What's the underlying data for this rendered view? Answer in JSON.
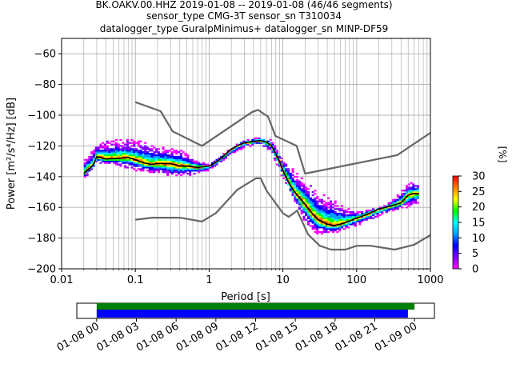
{
  "title_lines": [
    "BK.OAKV.00.HHZ   2019-01-08 -- 2019-01-08  (46/46 segments)",
    "sensor_type CMG-3T sensor_sn T310034",
    "datalogger_type GuralpMinimus+ datalogger_sn MINP-DF59"
  ],
  "chart_data": {
    "type": "heatmap",
    "xlabel": "Period [s]",
    "ylabel": "Power [m²/s⁴/Hz] [dB]",
    "xscale": "log",
    "xlim": [
      0.01,
      1000
    ],
    "ylim": [
      -200,
      -50
    ],
    "x_ticks": [
      0.01,
      0.1,
      1,
      10,
      100,
      1000
    ],
    "x_tick_labels": [
      "0.01",
      "0.1",
      "1",
      "10",
      "100",
      "1000"
    ],
    "y_ticks": [
      -200,
      -180,
      -160,
      -140,
      -120,
      -100,
      -80,
      -60
    ],
    "y_tick_labels": [
      "−200",
      "−180",
      "−160",
      "−140",
      "−120",
      "−100",
      "−80",
      "−60"
    ],
    "grid": true,
    "colorbar": {
      "label": "[%]",
      "ticks": [
        0,
        5,
        10,
        15,
        20,
        25,
        30
      ],
      "range": [
        0,
        30
      ],
      "colormap": "pqlx",
      "colors": [
        "#ff00ff",
        "#8000ff",
        "#0000ff",
        "#00a0ff",
        "#00ffff",
        "#00ff00",
        "#ffff00",
        "#ff8000",
        "#ff0000"
      ]
    },
    "noise_model_high": {
      "name": "NHNM",
      "color": "#666666",
      "points": [
        [
          0.1,
          -91.5
        ],
        [
          0.22,
          -97.4
        ],
        [
          0.32,
          -110.5
        ],
        [
          0.8,
          -120
        ],
        [
          3.8,
          -98
        ],
        [
          4.6,
          -96.5
        ],
        [
          6.3,
          -101
        ],
        [
          7.9,
          -113.5
        ],
        [
          15.4,
          -120
        ],
        [
          20,
          -138
        ],
        [
          354.8,
          -126
        ],
        [
          1000,
          -111.5
        ]
      ]
    },
    "noise_model_low": {
      "name": "NLNM",
      "color": "#666666",
      "points": [
        [
          0.1,
          -168
        ],
        [
          0.17,
          -166.7
        ],
        [
          0.4,
          -166.7
        ],
        [
          0.8,
          -169.2
        ],
        [
          1.24,
          -163.7
        ],
        [
          2.4,
          -148.6
        ],
        [
          4.3,
          -141.1
        ],
        [
          5,
          -141.1
        ],
        [
          6,
          -149
        ],
        [
          10,
          -163.8
        ],
        [
          12,
          -166.2
        ],
        [
          15.6,
          -162.1
        ],
        [
          21.9,
          -177.5
        ],
        [
          31.6,
          -185
        ],
        [
          45,
          -187.5
        ],
        [
          70,
          -187.5
        ],
        [
          101,
          -185
        ],
        [
          154,
          -185
        ],
        [
          328,
          -187.5
        ],
        [
          600,
          -184.4
        ],
        [
          1000,
          -178
        ]
      ]
    },
    "median": {
      "name": "median",
      "color": "#000000",
      "points": [
        [
          0.02,
          -138
        ],
        [
          0.022,
          -136
        ],
        [
          0.025,
          -134
        ],
        [
          0.027,
          -132
        ],
        [
          0.03,
          -127
        ],
        [
          0.04,
          -128.5
        ],
        [
          0.06,
          -128
        ],
        [
          0.08,
          -127.5
        ],
        [
          0.1,
          -129
        ],
        [
          0.13,
          -131
        ],
        [
          0.16,
          -132
        ],
        [
          0.2,
          -131.5
        ],
        [
          0.3,
          -131.5
        ],
        [
          0.4,
          -133
        ],
        [
          0.5,
          -133
        ],
        [
          0.7,
          -134
        ],
        [
          1,
          -133
        ],
        [
          1.3,
          -130
        ],
        [
          1.7,
          -125
        ],
        [
          2,
          -122
        ],
        [
          2.5,
          -119.5
        ],
        [
          3,
          -118
        ],
        [
          4,
          -117
        ],
        [
          5,
          -116.5
        ],
        [
          6,
          -117.5
        ],
        [
          7,
          -120
        ],
        [
          8,
          -125
        ],
        [
          9,
          -130
        ],
        [
          10,
          -136
        ],
        [
          12,
          -144
        ],
        [
          15,
          -151
        ],
        [
          20,
          -158
        ],
        [
          25,
          -164
        ],
        [
          30,
          -168
        ],
        [
          40,
          -171
        ],
        [
          50,
          -172
        ],
        [
          70,
          -170
        ],
        [
          100,
          -167
        ],
        [
          150,
          -164
        ],
        [
          200,
          -161
        ],
        [
          300,
          -159
        ],
        [
          400,
          -157
        ],
        [
          500,
          -152
        ],
        [
          600,
          -151
        ],
        [
          700,
          -151
        ]
      ]
    },
    "spread_upper": [
      [
        0.02,
        -130
      ],
      [
        0.03,
        -118
      ],
      [
        0.05,
        -116
      ],
      [
        0.1,
        -116
      ],
      [
        0.15,
        -118
      ],
      [
        0.2,
        -120
      ],
      [
        0.4,
        -122
      ],
      [
        0.6,
        -128
      ],
      [
        1,
        -132
      ],
      [
        2,
        -121
      ],
      [
        3,
        -116
      ],
      [
        5,
        -114
      ],
      [
        7,
        -116
      ],
      [
        10,
        -128
      ],
      [
        15,
        -137
      ],
      [
        20,
        -143
      ],
      [
        30,
        -150
      ],
      [
        50,
        -155
      ],
      [
        70,
        -160
      ],
      [
        100,
        -163
      ],
      [
        200,
        -160
      ],
      [
        300,
        -156
      ],
      [
        500,
        -144
      ],
      [
        700,
        -144
      ]
    ],
    "spread_lower": [
      [
        0.02,
        -142
      ],
      [
        0.03,
        -131
      ],
      [
        0.05,
        -132
      ],
      [
        0.1,
        -136
      ],
      [
        0.2,
        -138
      ],
      [
        0.3,
        -141
      ],
      [
        0.5,
        -140
      ],
      [
        1,
        -136
      ],
      [
        2,
        -126
      ],
      [
        3,
        -121
      ],
      [
        5,
        -119
      ],
      [
        7,
        -124
      ],
      [
        10,
        -141
      ],
      [
        15,
        -158
      ],
      [
        20,
        -170
      ],
      [
        30,
        -178
      ],
      [
        50,
        -177
      ],
      [
        100,
        -172
      ],
      [
        200,
        -166
      ],
      [
        300,
        -163
      ],
      [
        500,
        -160
      ],
      [
        700,
        -158
      ]
    ]
  },
  "timeline": {
    "tick_labels": [
      "01-08 00",
      "01-08 03",
      "01-08 06",
      "01-08 09",
      "01-08 12",
      "01-08 15",
      "01-08 18",
      "01-08 21",
      "01-09 00"
    ],
    "range_hours": [
      -1.5,
      25.5
    ],
    "data_bar": {
      "color": "#008000",
      "start_hours": 0,
      "end_hours": 24
    },
    "psd_bar": {
      "color": "#0000ff",
      "start_hours": 0,
      "end_hours": 23.5
    }
  }
}
